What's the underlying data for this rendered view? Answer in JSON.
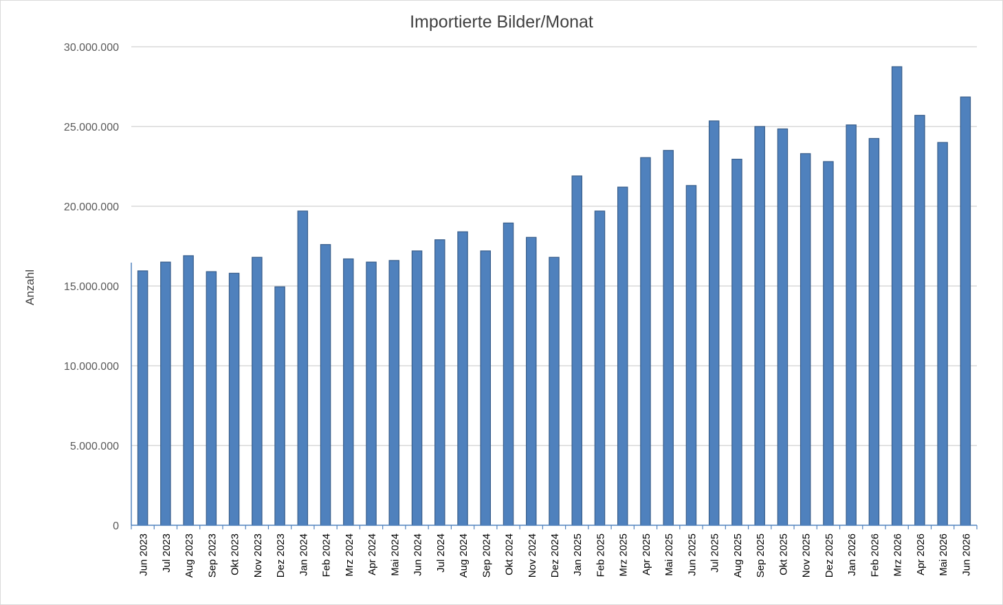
{
  "chart_data": {
    "type": "bar",
    "title": "Importierte Bilder/Monat",
    "xlabel": "",
    "ylabel": "Anzahl",
    "ylim": [
      0,
      30000000
    ],
    "yticks": [
      0,
      5000000,
      10000000,
      15000000,
      20000000,
      25000000,
      30000000
    ],
    "ytick_labels": [
      "0",
      "5.000.000",
      "10.000.000",
      "15.000.000",
      "20.000.000",
      "25.000.000",
      "30.000.000"
    ],
    "grid": "horizontal",
    "bar_color": "#4f81bd",
    "bar_edge_color": "#385d8a",
    "categories": [
      "Jun 2023",
      "Jul 2023",
      "Aug 2023",
      "Sep 2023",
      "Okt 2023",
      "Nov 2023",
      "Dez 2023",
      "Jan 2024",
      "Feb 2024",
      "Mrz 2024",
      "Apr 2024",
      "Mai 2024",
      "Jun 2024",
      "Jul 2024",
      "Aug 2024",
      "Sep 2024",
      "Okt 2024",
      "Nov 2024",
      "Dez 2024",
      "Jan 2025",
      "Feb 2025",
      "Mrz 2025",
      "Apr 2025",
      "Mai 2025",
      "Jun 2025",
      "Jul 2025",
      "Aug 2025",
      "Sep 2025",
      "Okt 2025",
      "Nov 2025",
      "Dez 2025",
      "Jan 2026",
      "Feb 2026",
      "Mrz 2026",
      "Apr 2026",
      "Mai 2026",
      "Jun 2026"
    ],
    "values": [
      15950000,
      16500000,
      16900000,
      15900000,
      15800000,
      16800000,
      14950000,
      19700000,
      17600000,
      16700000,
      16500000,
      16600000,
      17200000,
      17900000,
      18400000,
      17200000,
      18950000,
      18050000,
      16800000,
      21900000,
      19700000,
      21200000,
      23050000,
      23500000,
      21300000,
      25350000,
      22950000,
      25000000,
      24850000,
      23300000,
      22800000,
      25100000,
      24250000,
      28750000,
      25700000,
      24000000,
      26850000
    ]
  }
}
